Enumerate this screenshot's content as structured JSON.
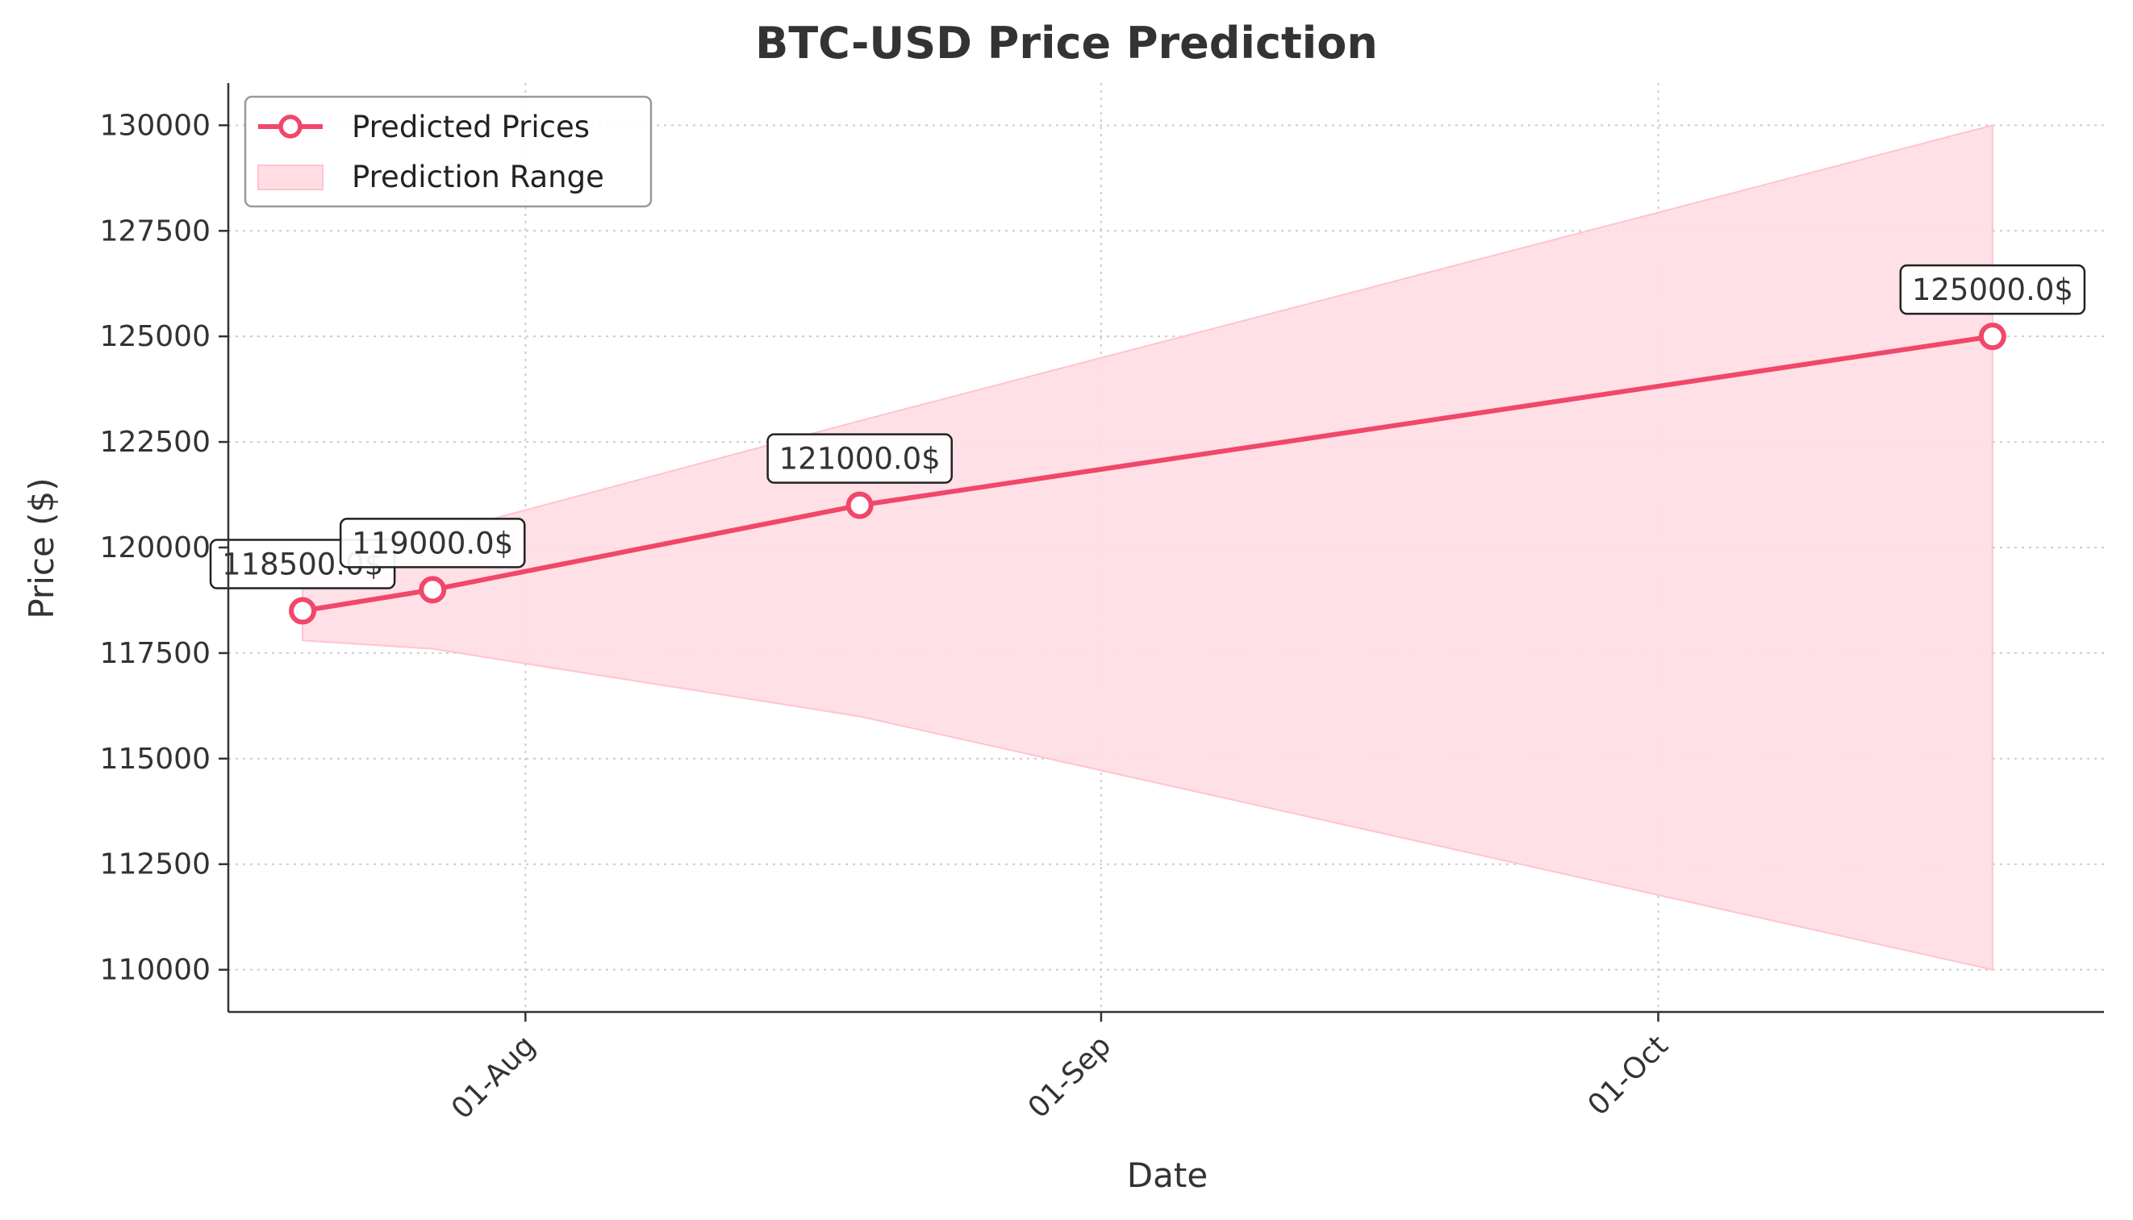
{
  "chart_data": {
    "type": "line",
    "title": "BTC-USD Price Prediction",
    "xlabel": "Date",
    "ylabel": "Price ($)",
    "x_ticks": [
      {
        "date": "2025-08-01",
        "label": "01-Aug"
      },
      {
        "date": "2025-09-01",
        "label": "01-Sep"
      },
      {
        "date": "2025-10-01",
        "label": "01-Oct"
      }
    ],
    "xlim": [
      "2025-07-16",
      "2025-10-25"
    ],
    "ylim": [
      109000,
      131000
    ],
    "y_ticks": [
      110000,
      112500,
      115000,
      117500,
      120000,
      122500,
      125000,
      127500,
      130000
    ],
    "grid": true,
    "legend_position": "top-left",
    "series": [
      {
        "name": "Predicted Prices",
        "color": "#f0476a",
        "points": [
          {
            "x": "2025-07-20",
            "y": 118500,
            "label": "118500.0$"
          },
          {
            "x": "2025-07-27",
            "y": 119000,
            "label": "119000.0$"
          },
          {
            "x": "2025-08-19",
            "y": 121000,
            "label": "121000.0$"
          },
          {
            "x": "2025-10-19",
            "y": 125000,
            "label": "125000.0$"
          }
        ]
      },
      {
        "name": "Prediction Range",
        "color": "#ffdde3",
        "band": [
          {
            "x": "2025-07-20",
            "low": 117800,
            "high": 119200
          },
          {
            "x": "2025-07-27",
            "low": 117600,
            "high": 120300
          },
          {
            "x": "2025-08-19",
            "low": 116000,
            "high": 123000
          },
          {
            "x": "2025-10-19",
            "low": 110000,
            "high": 130000
          }
        ]
      }
    ]
  }
}
